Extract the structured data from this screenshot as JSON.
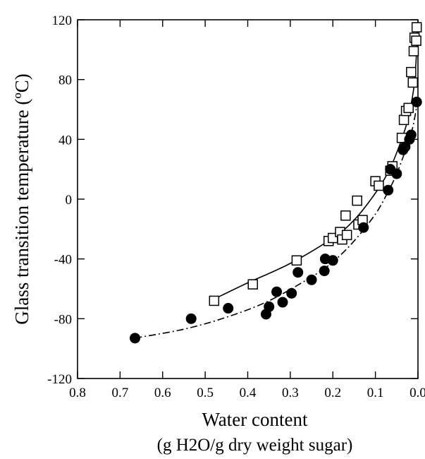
{
  "chart_data": {
    "type": "scatter",
    "title": "",
    "xlabel": "Water content",
    "xlabel_line2": "(g H2O/g dry weight sugar)",
    "ylabel": "Glass transition temperature (ºC)",
    "xlim": [
      0.8,
      0.0
    ],
    "ylim": [
      -120,
      120
    ],
    "x_reversed": true,
    "grid": false,
    "legend": "none",
    "x_ticks": [
      0.8,
      0.7,
      0.6,
      0.5,
      0.4,
      0.3,
      0.2,
      0.1,
      0.0
    ],
    "x_tick_labels": [
      "0.8",
      "0.7",
      "0.6",
      "0.5",
      "0.4",
      "0.3",
      "0.2",
      "0.1",
      "0.0"
    ],
    "y_ticks": [
      120,
      80,
      40,
      0,
      -40,
      -80,
      -120
    ],
    "y_tick_labels": [
      "120",
      "80",
      "40",
      "0",
      "-40",
      "-80",
      "-120"
    ],
    "series": [
      {
        "marker": "open-square",
        "line_style": "solid",
        "color": "#000000",
        "points": [
          {
            "x": 0.479,
            "y": -68
          },
          {
            "x": 0.388,
            "y": -57
          },
          {
            "x": 0.285,
            "y": -41
          },
          {
            "x": 0.21,
            "y": -28
          },
          {
            "x": 0.2,
            "y": -26
          },
          {
            "x": 0.183,
            "y": -22
          },
          {
            "x": 0.178,
            "y": -27
          },
          {
            "x": 0.17,
            "y": -11
          },
          {
            "x": 0.167,
            "y": -24
          },
          {
            "x": 0.143,
            "y": -1
          },
          {
            "x": 0.14,
            "y": -17
          },
          {
            "x": 0.13,
            "y": -14
          },
          {
            "x": 0.1,
            "y": 12
          },
          {
            "x": 0.092,
            "y": 9
          },
          {
            "x": 0.065,
            "y": 19
          },
          {
            "x": 0.06,
            "y": 22
          },
          {
            "x": 0.038,
            "y": 41
          },
          {
            "x": 0.033,
            "y": 53
          },
          {
            "x": 0.028,
            "y": 59
          },
          {
            "x": 0.022,
            "y": 61
          },
          {
            "x": 0.016,
            "y": 85
          },
          {
            "x": 0.012,
            "y": 78
          },
          {
            "x": 0.01,
            "y": 99
          },
          {
            "x": 0.008,
            "y": 108
          },
          {
            "x": 0.004,
            "y": 106
          },
          {
            "x": 0.003,
            "y": 115
          }
        ],
        "curve": [
          {
            "x": 0.48,
            "y": -67
          },
          {
            "x": 0.4,
            "y": -56
          },
          {
            "x": 0.3,
            "y": -43
          },
          {
            "x": 0.2,
            "y": -26
          },
          {
            "x": 0.15,
            "y": -14
          },
          {
            "x": 0.1,
            "y": 4
          },
          {
            "x": 0.07,
            "y": 18
          },
          {
            "x": 0.05,
            "y": 31
          },
          {
            "x": 0.03,
            "y": 47
          },
          {
            "x": 0.02,
            "y": 58
          },
          {
            "x": 0.01,
            "y": 74
          },
          {
            "x": 0.005,
            "y": 90
          },
          {
            "x": 0.002,
            "y": 107
          },
          {
            "x": 0.0,
            "y": 117
          }
        ]
      },
      {
        "marker": "filled-circle",
        "line_style": "dash-dot",
        "color": "#000000",
        "points": [
          {
            "x": 0.665,
            "y": -93
          },
          {
            "x": 0.533,
            "y": -80
          },
          {
            "x": 0.446,
            "y": -73
          },
          {
            "x": 0.357,
            "y": -77
          },
          {
            "x": 0.35,
            "y": -72
          },
          {
            "x": 0.332,
            "y": -62
          },
          {
            "x": 0.318,
            "y": -69
          },
          {
            "x": 0.297,
            "y": -63
          },
          {
            "x": 0.282,
            "y": -49
          },
          {
            "x": 0.25,
            "y": -54
          },
          {
            "x": 0.22,
            "y": -48
          },
          {
            "x": 0.218,
            "y": -40
          },
          {
            "x": 0.2,
            "y": -41
          },
          {
            "x": 0.128,
            "y": -19
          },
          {
            "x": 0.07,
            "y": 6
          },
          {
            "x": 0.065,
            "y": 20
          },
          {
            "x": 0.05,
            "y": 17
          },
          {
            "x": 0.035,
            "y": 33
          },
          {
            "x": 0.03,
            "y": 35
          },
          {
            "x": 0.02,
            "y": 40
          },
          {
            "x": 0.016,
            "y": 43
          },
          {
            "x": 0.003,
            "y": 65
          }
        ],
        "curve": [
          {
            "x": 0.665,
            "y": -93
          },
          {
            "x": 0.55,
            "y": -87
          },
          {
            "x": 0.45,
            "y": -79
          },
          {
            "x": 0.35,
            "y": -68
          },
          {
            "x": 0.25,
            "y": -52
          },
          {
            "x": 0.2,
            "y": -42
          },
          {
            "x": 0.15,
            "y": -28
          },
          {
            "x": 0.1,
            "y": -10
          },
          {
            "x": 0.07,
            "y": 5
          },
          {
            "x": 0.05,
            "y": 17
          },
          {
            "x": 0.03,
            "y": 32
          },
          {
            "x": 0.02,
            "y": 40
          },
          {
            "x": 0.01,
            "y": 51
          },
          {
            "x": 0.0,
            "y": 67
          }
        ]
      }
    ]
  }
}
